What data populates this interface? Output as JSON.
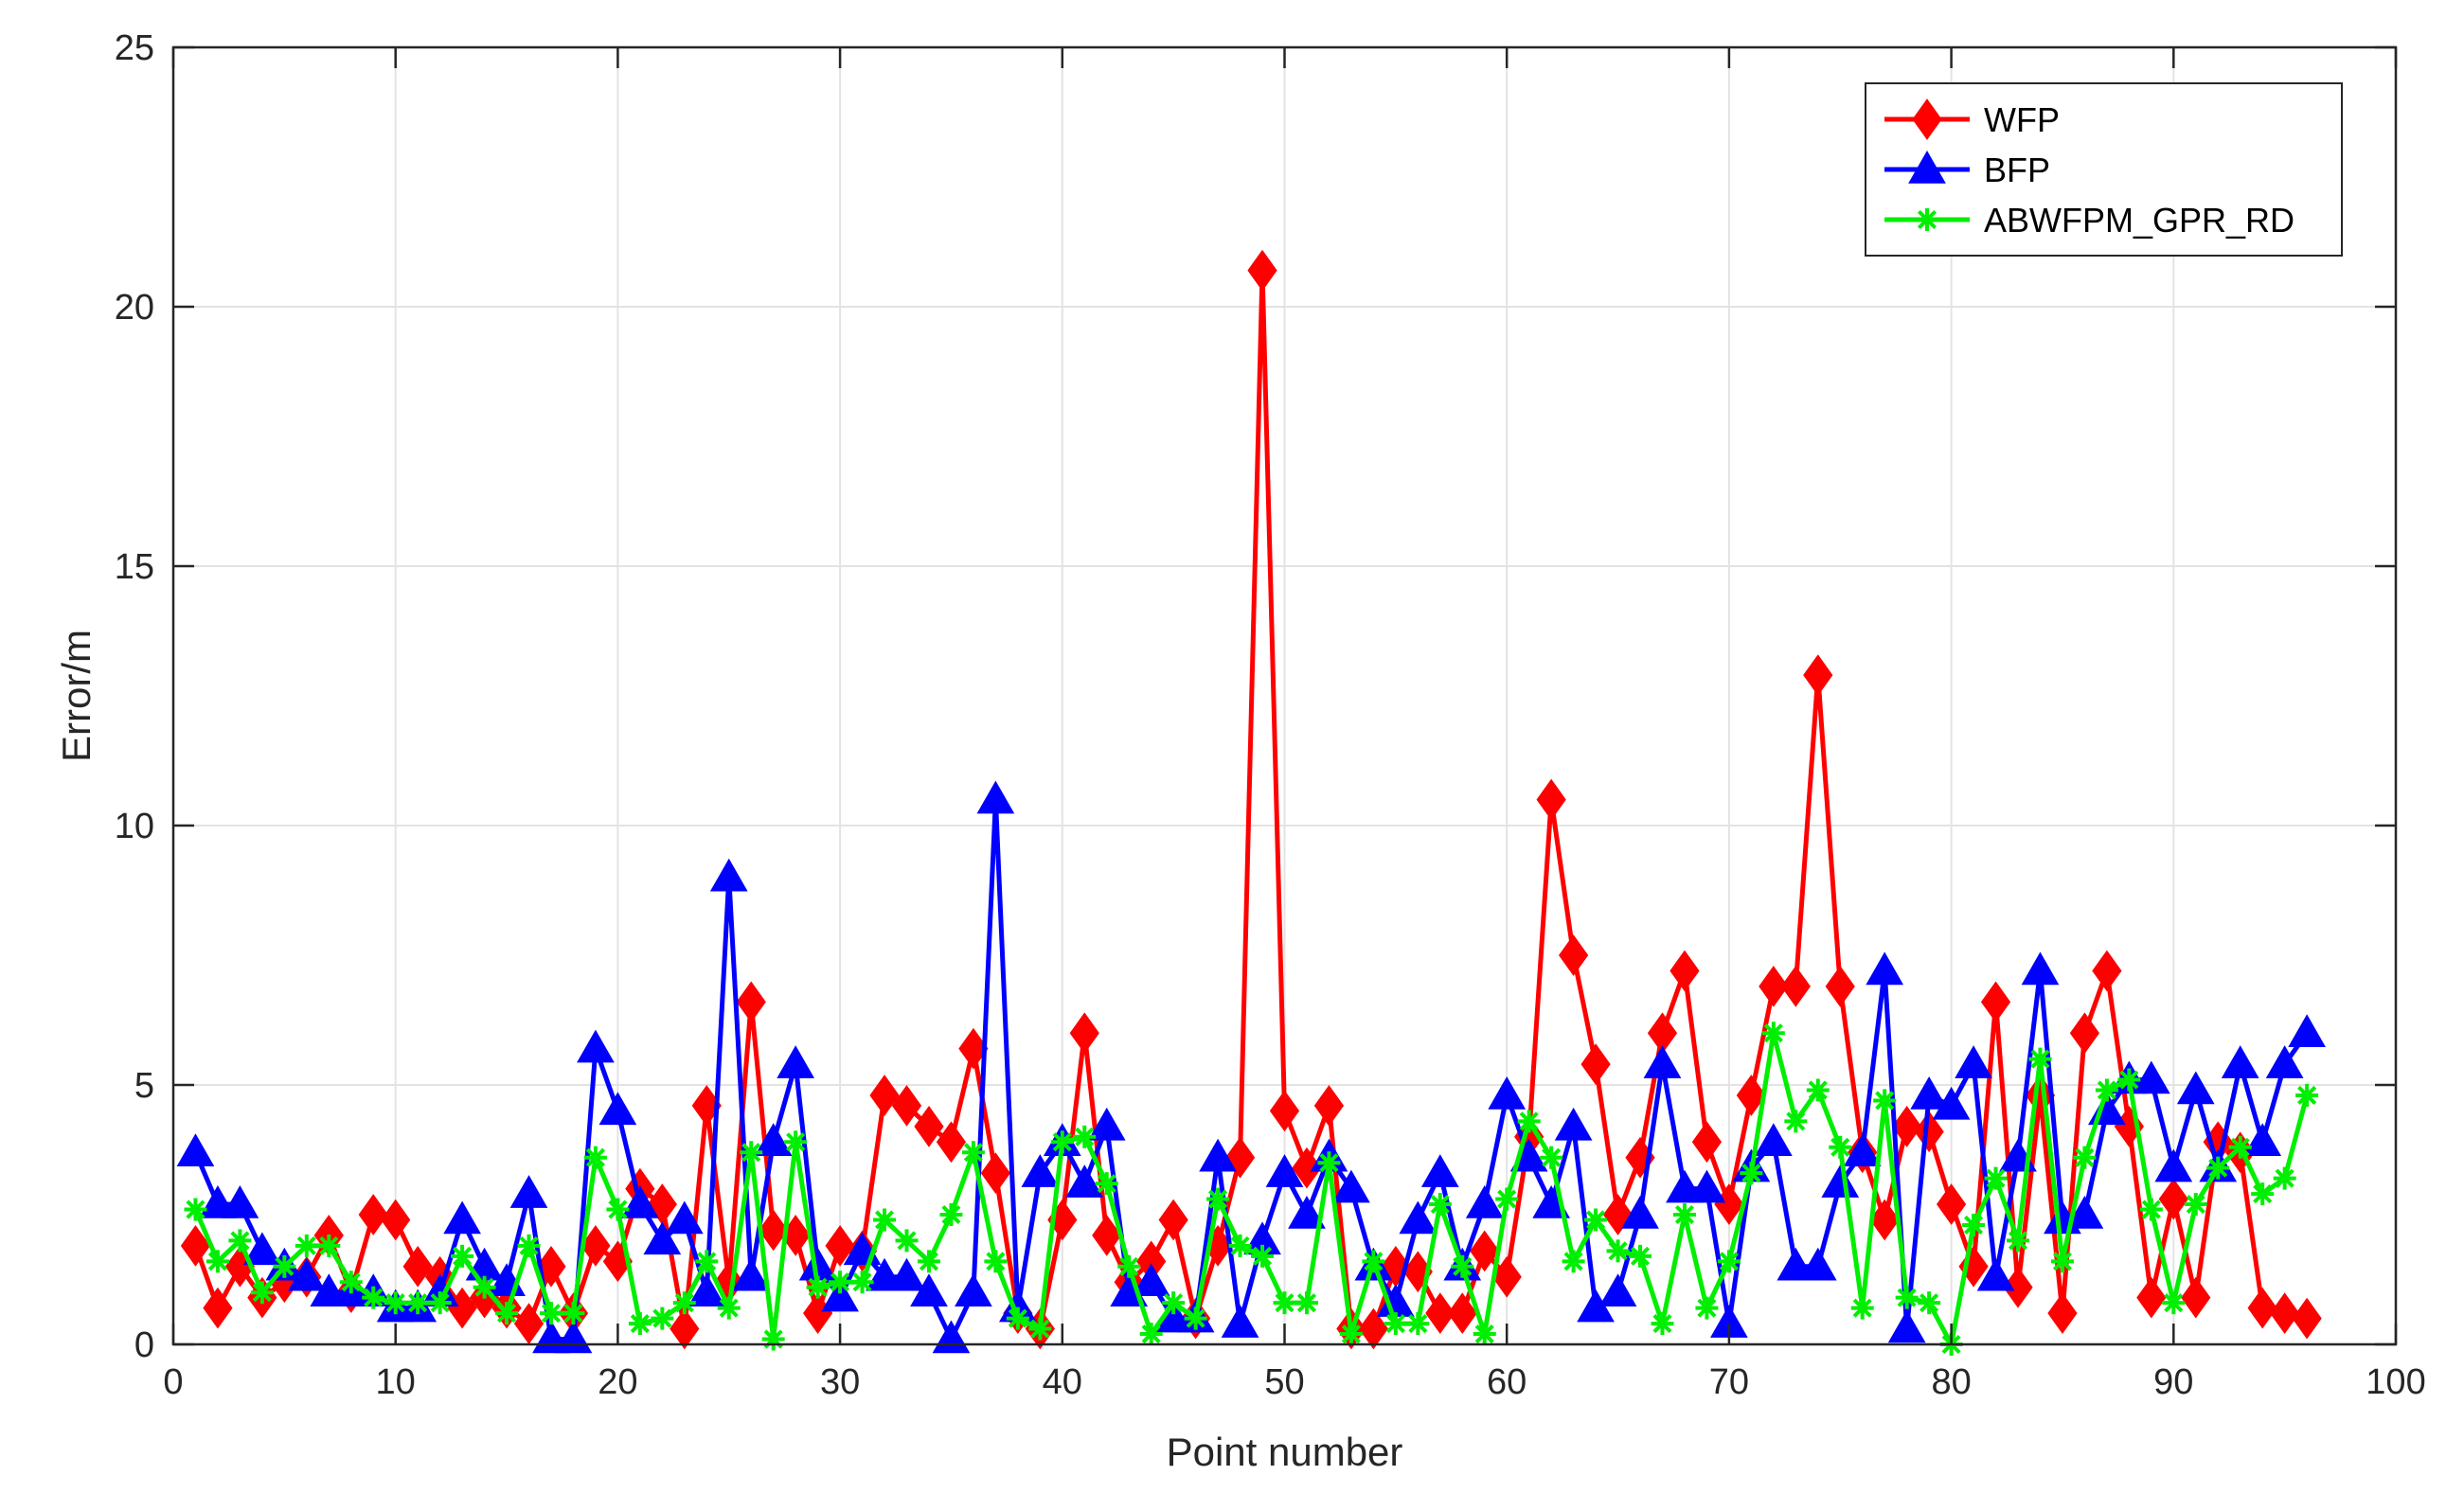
{
  "chart_data": {
    "type": "line",
    "title": "",
    "xlabel": "Point number",
    "ylabel": "Error/m",
    "xlim": [
      0,
      100
    ],
    "ylim": [
      0,
      25
    ],
    "xticks": [
      0,
      10,
      20,
      30,
      40,
      50,
      60,
      70,
      80,
      90,
      100
    ],
    "yticks": [
      0,
      5,
      10,
      15,
      20,
      25
    ],
    "grid": true,
    "legend_position": "top-right",
    "x": [
      1,
      2,
      3,
      4,
      5,
      6,
      7,
      8,
      9,
      10,
      11,
      12,
      13,
      14,
      15,
      16,
      17,
      18,
      19,
      20,
      21,
      22,
      23,
      24,
      25,
      26,
      27,
      28,
      29,
      30,
      31,
      32,
      33,
      34,
      35,
      36,
      37,
      38,
      39,
      40,
      41,
      42,
      43,
      44,
      45,
      46,
      47,
      48,
      49,
      50,
      51,
      52,
      53,
      54,
      55,
      56,
      57,
      58,
      59,
      60,
      61,
      62,
      63,
      64,
      65,
      66,
      67,
      68,
      69,
      70,
      71,
      72,
      73,
      74,
      75,
      76,
      77,
      78,
      79,
      80,
      81,
      82,
      83,
      84,
      85,
      86,
      87,
      88,
      89,
      90,
      91,
      92,
      93,
      94,
      95,
      96
    ],
    "series": [
      {
        "name": "WFP",
        "color": "#ff0000",
        "marker": "diamond",
        "values": [
          1.9,
          0.7,
          1.5,
          0.9,
          1.2,
          1.3,
          2.1,
          1.0,
          2.5,
          2.4,
          1.5,
          1.3,
          0.7,
          0.9,
          0.7,
          0.4,
          1.5,
          0.6,
          1.9,
          1.6,
          3.0,
          2.7,
          0.3,
          4.6,
          1.2,
          6.6,
          2.2,
          2.1,
          0.6,
          1.9,
          1.8,
          4.8,
          4.6,
          4.2,
          3.9,
          5.7,
          3.3,
          0.6,
          0.3,
          2.4,
          6.0,
          2.1,
          1.2,
          1.6,
          2.4,
          0.5,
          1.9,
          3.6,
          20.7,
          4.5,
          3.4,
          4.6,
          0.3,
          0.3,
          1.5,
          1.4,
          0.6,
          0.6,
          1.8,
          1.3,
          4.0,
          10.5,
          7.5,
          5.4,
          2.5,
          3.6,
          6.0,
          7.2,
          3.9,
          2.7,
          4.8,
          6.9,
          6.9,
          12.9,
          6.9,
          3.7,
          2.4,
          4.2,
          4.1,
          2.7,
          1.5,
          6.6,
          1.1,
          4.8,
          0.6,
          6.0,
          7.2,
          4.2,
          0.9,
          2.8,
          0.9,
          3.9,
          3.7,
          0.7,
          0.6,
          0.5
        ]
      },
      {
        "name": "BFP",
        "color": "#0000ff",
        "marker": "triangle",
        "values": [
          3.7,
          2.7,
          2.7,
          1.8,
          1.5,
          1.3,
          1.0,
          1.0,
          1.0,
          0.7,
          0.7,
          1.0,
          2.4,
          1.5,
          1.2,
          2.9,
          0.1,
          0.1,
          5.7,
          4.5,
          2.7,
          2.0,
          2.4,
          1.0,
          9.0,
          1.3,
          3.9,
          5.4,
          1.5,
          0.9,
          1.8,
          1.3,
          1.3,
          1.0,
          0.1,
          1.0,
          10.5,
          0.7,
          3.3,
          3.9,
          3.1,
          4.2,
          1.0,
          1.2,
          0.5,
          0.5,
          3.6,
          0.4,
          2.0,
          3.3,
          2.5,
          3.6,
          3.0,
          1.5,
          0.8,
          2.4,
          3.3,
          1.5,
          2.7,
          4.8,
          3.6,
          2.7,
          4.2,
          0.7,
          1.0,
          2.5,
          5.4,
          3.0,
          3.0,
          0.4,
          3.4,
          3.9,
          1.5,
          1.5,
          3.1,
          3.7,
          7.2,
          0.3,
          4.8,
          4.6,
          5.4,
          1.3,
          3.6,
          7.2,
          2.4,
          2.5,
          4.5,
          5.1,
          5.1,
          3.4,
          4.9,
          3.4,
          5.4,
          3.9,
          5.4,
          6.0
        ]
      },
      {
        "name": "ABWFPM_GPR_RD",
        "color": "#00ee00",
        "marker": "asterisk",
        "values": [
          2.6,
          1.6,
          2.0,
          1.0,
          1.5,
          1.9,
          1.9,
          1.2,
          0.9,
          0.8,
          0.8,
          0.8,
          1.7,
          1.1,
          0.6,
          1.9,
          0.6,
          0.6,
          3.6,
          2.6,
          0.4,
          0.5,
          0.8,
          1.6,
          0.7,
          3.7,
          0.1,
          3.9,
          1.1,
          1.2,
          1.2,
          2.4,
          2.0,
          1.6,
          2.5,
          3.7,
          1.6,
          0.5,
          0.3,
          3.9,
          4.0,
          3.1,
          1.5,
          0.2,
          0.8,
          0.5,
          2.8,
          1.9,
          1.7,
          0.8,
          0.8,
          3.5,
          0.2,
          1.6,
          0.4,
          0.4,
          2.7,
          1.5,
          0.2,
          2.8,
          4.3,
          3.6,
          1.6,
          2.4,
          1.8,
          1.7,
          0.4,
          2.5,
          0.7,
          1.6,
          3.3,
          6.0,
          4.3,
          4.9,
          3.8,
          0.7,
          4.7,
          0.9,
          0.8,
          0.0,
          2.3,
          3.2,
          2.0,
          5.5,
          1.6,
          3.6,
          4.9,
          5.1,
          2.6,
          0.8,
          2.7,
          3.4,
          3.8,
          2.9,
          3.2,
          4.8
        ]
      }
    ]
  }
}
